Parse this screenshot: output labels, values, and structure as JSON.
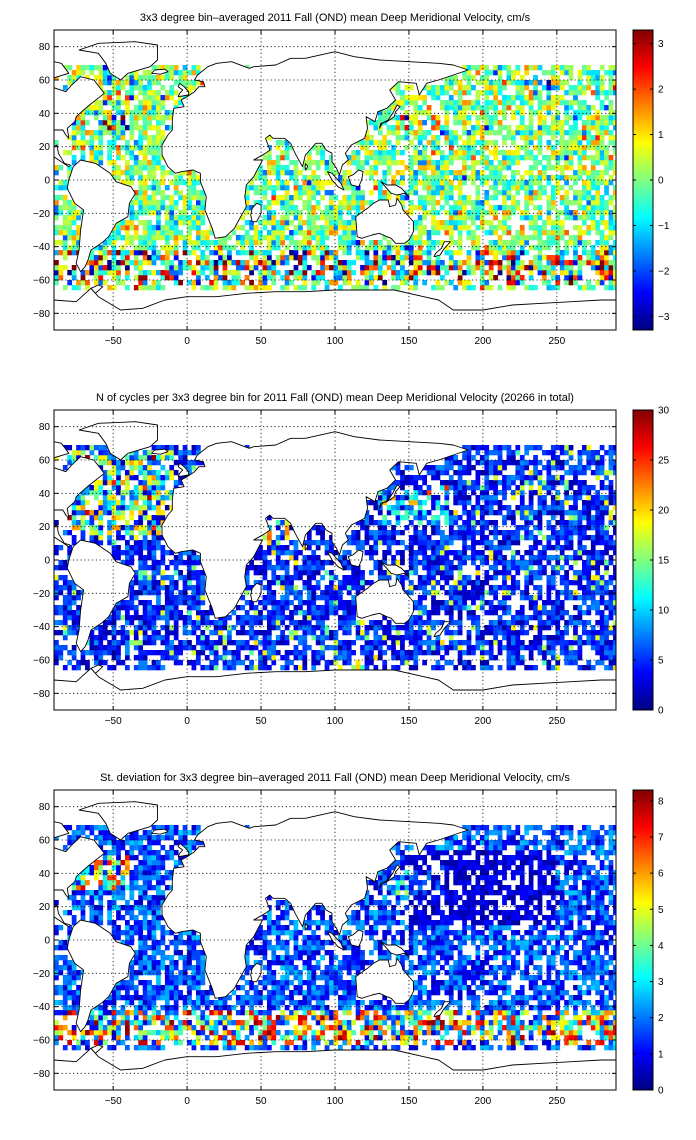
{
  "chart_data": [
    {
      "type": "heatmap",
      "title": "3x3 degree bin–averaged 2011 Fall (OND) mean Deep Meridional Velocity, cm/s",
      "xlabel": "",
      "ylabel": "",
      "xlim": [
        -90,
        290
      ],
      "ylim": [
        -90,
        90
      ],
      "xticks": [
        -50,
        0,
        50,
        100,
        150,
        200,
        250
      ],
      "yticks": [
        80,
        60,
        40,
        20,
        0,
        -20,
        -40,
        -60,
        -80
      ],
      "bin_size_deg": 3,
      "grid": "dotted",
      "colormap": "jet",
      "colorbar": {
        "min": -3.3,
        "max": 3.3,
        "ticks": [
          3,
          2,
          1,
          0,
          -1,
          -2,
          -3
        ],
        "location": "right"
      },
      "field": "velocity"
    },
    {
      "type": "heatmap",
      "title": "N of cycles per 3x3 degree bin for 2011 Fall (OND) mean Deep Meridional Velocity (20266 in total)",
      "xlabel": "",
      "ylabel": "",
      "xlim": [
        -90,
        290
      ],
      "ylim": [
        -90,
        90
      ],
      "xticks": [
        -50,
        0,
        50,
        100,
        150,
        200,
        250
      ],
      "yticks": [
        80,
        60,
        40,
        20,
        0,
        -20,
        -40,
        -60,
        -80
      ],
      "bin_size_deg": 3,
      "grid": "dotted",
      "colormap": "jet",
      "colorbar": {
        "min": 0,
        "max": 30,
        "ticks": [
          30,
          25,
          20,
          15,
          10,
          5,
          0
        ],
        "location": "right"
      },
      "field": "count"
    },
    {
      "type": "heatmap",
      "title": "St. deviation for 3x3 degree bin–averaged 2011 Fall (OND) mean Deep Meridional Velocity, cm/s",
      "xlabel": "",
      "ylabel": "",
      "xlim": [
        -90,
        290
      ],
      "ylim": [
        -90,
        90
      ],
      "xticks": [
        -50,
        0,
        50,
        100,
        150,
        200,
        250
      ],
      "yticks": [
        80,
        60,
        40,
        20,
        0,
        -20,
        -40,
        -60,
        -80
      ],
      "bin_size_deg": 3,
      "grid": "dotted",
      "colormap": "jet",
      "colorbar": {
        "min": 0,
        "max": 8.3,
        "ticks": [
          8,
          7,
          6,
          5,
          4,
          3,
          2,
          1,
          0
        ],
        "location": "right"
      },
      "field": "stdev"
    }
  ]
}
